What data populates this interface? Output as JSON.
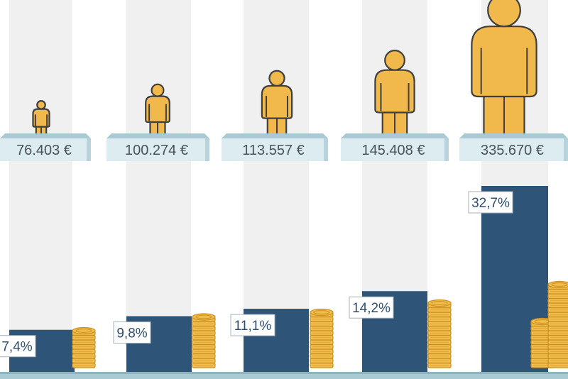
{
  "chart_data": {
    "type": "bar",
    "categories": [
      "76.403 €",
      "100.274 €",
      "113.557 €",
      "145.408 €",
      "335.670 €"
    ],
    "series": [
      {
        "values": [
          7.4,
          9.8,
          11.1,
          14.2,
          32.7
        ],
        "labels": [
          "7,4%",
          "9,8%",
          "11,1%",
          "14,2%",
          "32,7%"
        ]
      }
    ],
    "ylim": [
      0,
      40
    ],
    "grid": false,
    "legend": "none"
  },
  "colors": {
    "bar": "#2e5577",
    "person_fill": "#f1b94b",
    "person_stroke": "#3f3f3f",
    "coin_fill": "#f2bd4c",
    "coin_dark": "#c98f1f",
    "column_background": "#f0f0f0",
    "plank_front": "#ddecf1",
    "plank_top": "#a9c9d3",
    "label_text": "#4a5359"
  },
  "icons": [
    "person-icon",
    "coin-stack-icon"
  ]
}
